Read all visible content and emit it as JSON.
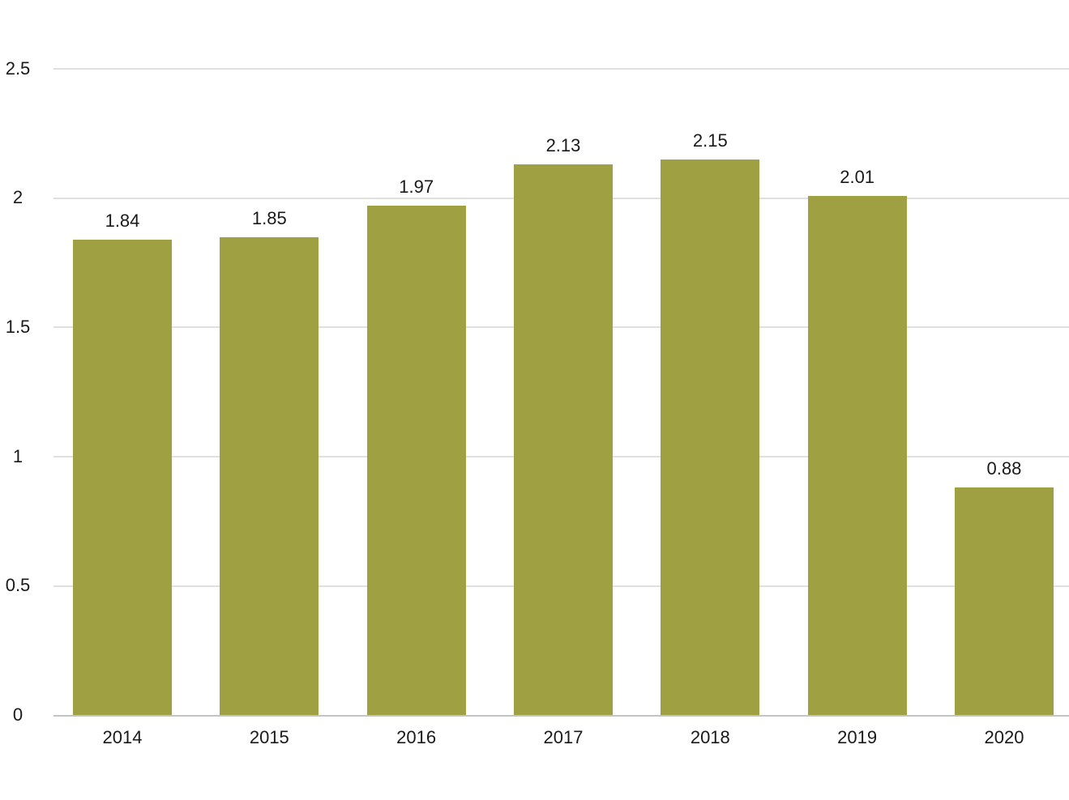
{
  "chart_data": {
    "type": "bar",
    "title": "",
    "xlabel": "",
    "ylabel": "",
    "categories": [
      "2014",
      "2015",
      "2016",
      "2017",
      "2018",
      "2019",
      "2020"
    ],
    "values": [
      1.84,
      1.85,
      1.97,
      2.13,
      2.15,
      2.01,
      0.88
    ],
    "value_labels": [
      "1.84",
      "1.85",
      "1.97",
      "2.13",
      "2.15",
      "2.01",
      "0.88"
    ],
    "ylim": [
      0,
      2.5
    ],
    "yticks": [
      0,
      0.5,
      1,
      1.5,
      2,
      2.5
    ],
    "ytick_labels": [
      "0",
      "0.5",
      "1",
      "1.5",
      "2",
      "2.5"
    ],
    "grid": true,
    "legend": "none",
    "colors": {
      "bar": "#9fa041",
      "gridline": "#e0e0e0",
      "baseline": "#c4c4c4",
      "text": "#1a1a1a",
      "background": "#ffffff"
    }
  }
}
